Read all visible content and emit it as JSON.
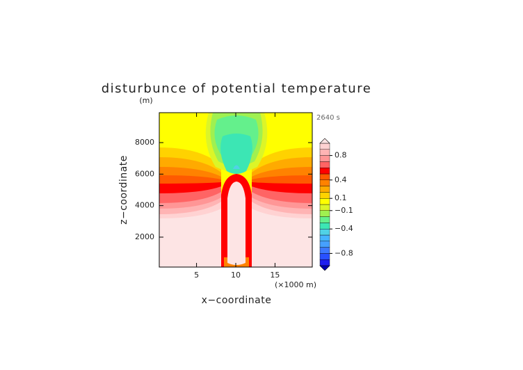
{
  "chart_data": {
    "type": "contour",
    "title": "disturbunce of potential temperature",
    "y_unit": "(m)",
    "annotation": "2640 s",
    "x_label": "x−coordinate",
    "x_unit": "(×1000 m)",
    "y_label": "z−coordinate",
    "xlim": [
      0.25,
      19.75
    ],
    "xticks": [
      5,
      10,
      15
    ],
    "ylim": [
      100,
      9900
    ],
    "yticks": [
      2000,
      4000,
      6000,
      8000
    ],
    "colorbar": {
      "levels": [
        -1,
        -0.9,
        -0.8,
        -0.7,
        -0.6,
        -0.5,
        -0.4,
        -0.3,
        -0.2,
        -0.1,
        0,
        0.1,
        0.2,
        0.3,
        0.4,
        0.5,
        0.6,
        0.7,
        0.8,
        0.9,
        1
      ],
      "colors": [
        "#1e1ef0",
        "#2850ff",
        "#3c78ff",
        "#46a0ff",
        "#46b4ff",
        "#50d2e6",
        "#3ce6b4",
        "#64f08c",
        "#a0f050",
        "#dcf528",
        "#ffff00",
        "#ffd200",
        "#ffaa00",
        "#ff8200",
        "#ff5a00",
        "#ff0000",
        "#ff6464",
        "#ff9696",
        "#ffb4b4",
        "#ffd2d2"
      ],
      "over_color": "#fde4e4",
      "under_color": "#0000b4",
      "ticks": [
        0.8,
        0.4,
        0.1,
        {
          "value": -0.1,
          "label": "−0.1"
        },
        {
          "value": -0.4,
          "label": "−0.4"
        },
        {
          "value": -0.8,
          "label": "−0.8"
        }
      ]
    }
  }
}
